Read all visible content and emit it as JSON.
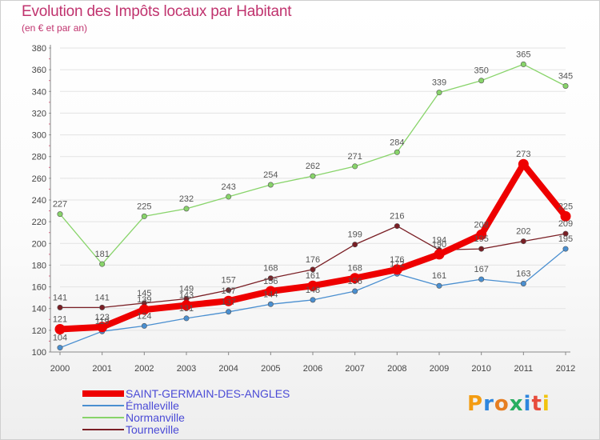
{
  "title": "Evolution des Impôts locaux par Habitant",
  "subtitle": "(en € et par an)",
  "logo": {
    "text": "Proxiti",
    "colors": [
      "#f39c12",
      "#2e86de",
      "#e67e22",
      "#27ae60",
      "#2e86de",
      "#e74c3c",
      "#f1c40f"
    ]
  },
  "chart_data": {
    "type": "line",
    "title": "Evolution des Impôts locaux par Habitant",
    "subtitle": "(en € et par an)",
    "xlabel": "",
    "ylabel": "",
    "x": [
      "2000",
      "2001",
      "2002",
      "2003",
      "2004",
      "2005",
      "2006",
      "2007",
      "2008",
      "2009",
      "2010",
      "2011",
      "2012"
    ],
    "ylim": [
      100,
      380
    ],
    "yticks": [
      100,
      120,
      140,
      160,
      180,
      200,
      220,
      240,
      260,
      280,
      300,
      320,
      340,
      360,
      380
    ],
    "grid": true,
    "legend": "bottom-left",
    "series": [
      {
        "name": "SAINT-GERMAIN-DES-ANGLES",
        "color": "#ee0000",
        "emphasis": true,
        "values": [
          121,
          123,
          139,
          143,
          147,
          156,
          161,
          168,
          176,
          190,
          208,
          273,
          225
        ],
        "labels": [
          "121",
          "123",
          "139",
          "143",
          "147",
          "156",
          "161",
          "168",
          "176",
          "190",
          "208",
          "273",
          "225"
        ]
      },
      {
        "name": "Émalleville",
        "color": "#4a8fd0",
        "values": [
          104,
          119,
          124,
          131,
          137,
          144,
          148,
          156,
          172,
          161,
          167,
          163,
          195
        ],
        "labels": [
          "104",
          "119",
          "124",
          "131",
          "137",
          "144",
          "148",
          "156",
          "172",
          "161",
          "167",
          "163",
          "195"
        ]
      },
      {
        "name": "Normanville",
        "color": "#88d46a",
        "values": [
          227,
          181,
          225,
          232,
          243,
          254,
          262,
          271,
          284,
          339,
          350,
          365,
          345
        ],
        "labels": [
          "227",
          "181",
          "225",
          "232",
          "243",
          "254",
          "262",
          "271",
          "284",
          "339",
          "350",
          "365",
          "345"
        ]
      },
      {
        "name": "Tourneville",
        "color": "#7a1f25",
        "values": [
          141,
          141,
          145,
          149,
          157,
          168,
          176,
          199,
          216,
          194,
          195,
          202,
          209
        ],
        "labels": [
          "141",
          "141",
          "145",
          "149",
          "157",
          "168",
          "176",
          "199",
          "216",
          "194",
          "195",
          "202",
          "209"
        ]
      }
    ]
  }
}
